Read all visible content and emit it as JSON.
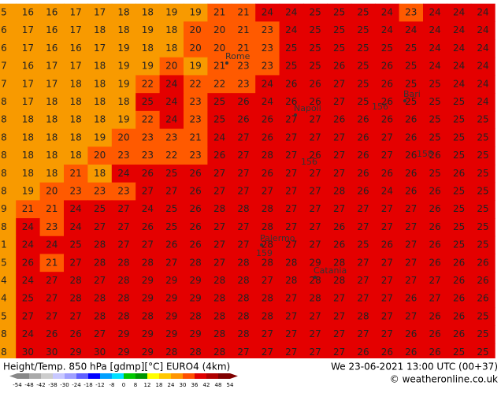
{
  "grid": [
    [
      "5",
      "16",
      "16",
      "17",
      "17",
      "18",
      "18",
      "19",
      "19",
      "21",
      "21",
      "24",
      "24",
      "25",
      "25",
      "25",
      "24",
      "23",
      "24",
      "24",
      "24"
    ],
    [
      "6",
      "17",
      "16",
      "17",
      "18",
      "18",
      "19",
      "18",
      "20",
      "20",
      "21",
      "23",
      "24",
      "25",
      "25",
      "25",
      "24",
      "24",
      "24",
      "24",
      "24"
    ],
    [
      "6",
      "17",
      "16",
      "16",
      "17",
      "19",
      "18",
      "18",
      "20",
      "20",
      "21",
      "23",
      "25",
      "25",
      "25",
      "25",
      "25",
      "25",
      "24",
      "24",
      "24"
    ],
    [
      "7",
      "16",
      "17",
      "17",
      "18",
      "19",
      "19",
      "20",
      "19",
      "21",
      "23",
      "23",
      "25",
      "25",
      "26",
      "25",
      "26",
      "25",
      "24",
      "24",
      "24"
    ],
    [
      "7",
      "17",
      "17",
      "18",
      "18",
      "19",
      "22",
      "24",
      "22",
      "22",
      "23",
      "24",
      "26",
      "26",
      "27",
      "25",
      "26",
      "25",
      "25",
      "24",
      "24"
    ],
    [
      "8",
      "17",
      "18",
      "18",
      "18",
      "18",
      "25",
      "24",
      "23",
      "25",
      "26",
      "24",
      "26",
      "26",
      "27",
      "25",
      "26",
      "25",
      "25",
      "25",
      "24"
    ],
    [
      "8",
      "18",
      "18",
      "18",
      "18",
      "19",
      "22",
      "24",
      "23",
      "25",
      "26",
      "26",
      "27",
      "27",
      "26",
      "26",
      "26",
      "26",
      "25",
      "25",
      "25"
    ],
    [
      "8",
      "18",
      "18",
      "18",
      "19",
      "20",
      "23",
      "23",
      "21",
      "24",
      "27",
      "26",
      "27",
      "27",
      "27",
      "26",
      "27",
      "26",
      "25",
      "25",
      "25"
    ],
    [
      "8",
      "18",
      "18",
      "18",
      "20",
      "23",
      "23",
      "22",
      "23",
      "26",
      "27",
      "28",
      "27",
      "26",
      "27",
      "26",
      "27",
      "26",
      "26",
      "25",
      "25"
    ],
    [
      "8",
      "18",
      "18",
      "21",
      "18",
      "24",
      "26",
      "25",
      "26",
      "27",
      "27",
      "26",
      "27",
      "27",
      "27",
      "26",
      "26",
      "26",
      "25",
      "26",
      "25"
    ],
    [
      "8",
      "19",
      "20",
      "23",
      "23",
      "23",
      "27",
      "27",
      "26",
      "27",
      "27",
      "27",
      "27",
      "27",
      "28",
      "26",
      "24",
      "26",
      "26",
      "25",
      "25"
    ],
    [
      "9",
      "21",
      "21",
      "24",
      "25",
      "27",
      "24",
      "25",
      "26",
      "28",
      "28",
      "28",
      "27",
      "27",
      "27",
      "27",
      "27",
      "27",
      "26",
      "25",
      "25"
    ],
    [
      "8",
      "24",
      "23",
      "24",
      "27",
      "27",
      "26",
      "25",
      "26",
      "27",
      "27",
      "28",
      "27",
      "27",
      "26",
      "27",
      "27",
      "27",
      "26",
      "25",
      "25"
    ],
    [
      "1",
      "24",
      "24",
      "25",
      "28",
      "27",
      "27",
      "26",
      "26",
      "27",
      "27",
      "28",
      "27",
      "27",
      "26",
      "25",
      "26",
      "27",
      "26",
      "25",
      "25"
    ],
    [
      "5",
      "26",
      "21",
      "27",
      "28",
      "28",
      "28",
      "27",
      "28",
      "27",
      "28",
      "28",
      "28",
      "29",
      "28",
      "27",
      "27",
      "27",
      "26",
      "26",
      "26"
    ],
    [
      "4",
      "24",
      "27",
      "28",
      "27",
      "28",
      "29",
      "29",
      "29",
      "28",
      "28",
      "27",
      "28",
      "28",
      "28",
      "27",
      "27",
      "27",
      "27",
      "26",
      "26"
    ],
    [
      "4",
      "25",
      "27",
      "28",
      "28",
      "28",
      "29",
      "29",
      "29",
      "28",
      "28",
      "28",
      "27",
      "28",
      "27",
      "27",
      "27",
      "26",
      "27",
      "26",
      "26"
    ],
    [
      "5",
      "27",
      "27",
      "27",
      "28",
      "28",
      "28",
      "29",
      "28",
      "28",
      "28",
      "28",
      "27",
      "27",
      "27",
      "28",
      "27",
      "27",
      "26",
      "26",
      "25"
    ],
    [
      "8",
      "24",
      "26",
      "26",
      "27",
      "29",
      "29",
      "29",
      "29",
      "28",
      "28",
      "27",
      "27",
      "27",
      "27",
      "27",
      "27",
      "26",
      "26",
      "26",
      "25"
    ],
    [
      "8",
      "30",
      "30",
      "29",
      "30",
      "29",
      "29",
      "28",
      "28",
      "28",
      "27",
      "27",
      "27",
      "27",
      "27",
      "26",
      "26",
      "26",
      "26",
      "25",
      "25"
    ]
  ],
  "cities": [
    "Rome",
    "Napoli",
    "Bari",
    "Palermo",
    "Catania"
  ],
  "contours": [
    "156",
    "156",
    "158",
    "159"
  ],
  "footer": {
    "left": "Height/Temp. 850 hPa [gdmp][°C] EURO4 (4km)",
    "right": "We 23-06-2021 13:00 UTC (00+37)",
    "credit": "© weatheronline.co.uk"
  },
  "scale": [
    "-54",
    "-48",
    "-42",
    "-38",
    "-30",
    "-24",
    "-18",
    "-12",
    "-8",
    "0",
    "8",
    "12",
    "18",
    "24",
    "30",
    "36",
    "42",
    "48",
    "54"
  ]
}
